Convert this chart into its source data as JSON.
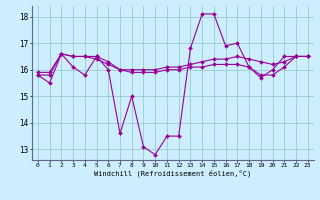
{
  "xlabel": "Windchill (Refroidissement éolien,°C)",
  "x": [
    0,
    1,
    2,
    3,
    4,
    5,
    6,
    7,
    8,
    9,
    10,
    11,
    12,
    13,
    14,
    15,
    16,
    17,
    18,
    19,
    20,
    21,
    22,
    23
  ],
  "series1": [
    15.8,
    15.5,
    16.6,
    16.1,
    15.8,
    16.5,
    16.0,
    13.6,
    15.0,
    13.1,
    12.8,
    13.5,
    13.5,
    16.8,
    18.1,
    18.1,
    16.9,
    17.0,
    16.1,
    15.7,
    16.0,
    16.5,
    16.5,
    16.5
  ],
  "series2": [
    15.9,
    15.9,
    16.6,
    16.5,
    16.5,
    16.4,
    16.2,
    16.0,
    15.9,
    15.9,
    15.9,
    16.0,
    16.0,
    16.1,
    16.1,
    16.2,
    16.2,
    16.2,
    16.1,
    15.8,
    15.8,
    16.1,
    16.5,
    16.5
  ],
  "series3": [
    15.8,
    15.8,
    16.6,
    16.5,
    16.5,
    16.5,
    16.3,
    16.0,
    16.0,
    16.0,
    16.0,
    16.1,
    16.1,
    16.2,
    16.3,
    16.4,
    16.4,
    16.5,
    16.4,
    16.3,
    16.2,
    16.3,
    16.5,
    16.5
  ],
  "line_color": "#990099",
  "bg_color": "#cceeff",
  "grid_color": "#99cccc",
  "ylim": [
    12.6,
    18.4
  ],
  "yticks": [
    13,
    14,
    15,
    16,
    17,
    18
  ],
  "xticks": [
    0,
    1,
    2,
    3,
    4,
    5,
    6,
    7,
    8,
    9,
    10,
    11,
    12,
    13,
    14,
    15,
    16,
    17,
    18,
    19,
    20,
    21,
    22,
    23
  ]
}
